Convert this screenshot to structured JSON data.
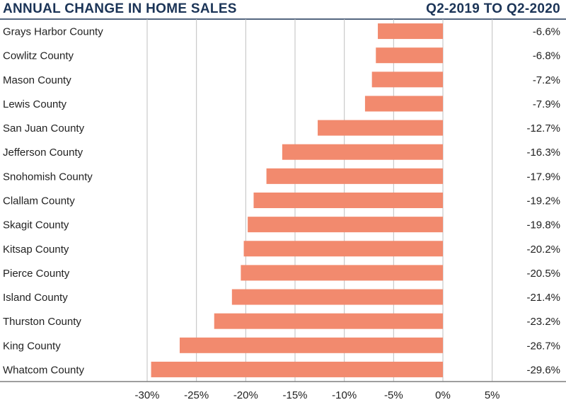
{
  "chart_data": {
    "type": "bar",
    "orientation": "horizontal",
    "title": "ANNUAL CHANGE IN HOME SALES",
    "subtitle": "Q2-2019 TO Q2-2020",
    "categories": [
      "Grays Harbor County",
      "Cowlitz County",
      "Mason County",
      "Lewis County",
      "San Juan County",
      "Jefferson County",
      "Snohomish County",
      "Clallam County",
      "Skagit County",
      "Kitsap County",
      "Pierce County",
      "Island County",
      "Thurston County",
      "King County",
      "Whatcom County"
    ],
    "values": [
      -6.6,
      -6.8,
      -7.2,
      -7.9,
      -12.7,
      -16.3,
      -17.9,
      -19.2,
      -19.8,
      -20.2,
      -20.5,
      -21.4,
      -23.2,
      -26.7,
      -29.6
    ],
    "value_labels": [
      "-6.6%",
      "-6.8%",
      "-7.2%",
      "-7.9%",
      "-12.7%",
      "-16.3%",
      "-17.9%",
      "-19.2%",
      "-19.8%",
      "-20.2%",
      "-20.5%",
      "-21.4%",
      "-23.2%",
      "-26.7%",
      "-29.6%"
    ],
    "xlim": [
      -30,
      5
    ],
    "xticks": [
      -30,
      -25,
      -20,
      -15,
      -10,
      -5,
      0,
      5
    ],
    "xtick_labels": [
      "-30%",
      "-25%",
      "-20%",
      "-15%",
      "-10%",
      "-5%",
      "0%",
      "5%"
    ],
    "grid": true,
    "legend": "none",
    "bar_color": "#f28a6e",
    "title_color": "#1b3457",
    "grid_color": "#bfbfbf"
  }
}
